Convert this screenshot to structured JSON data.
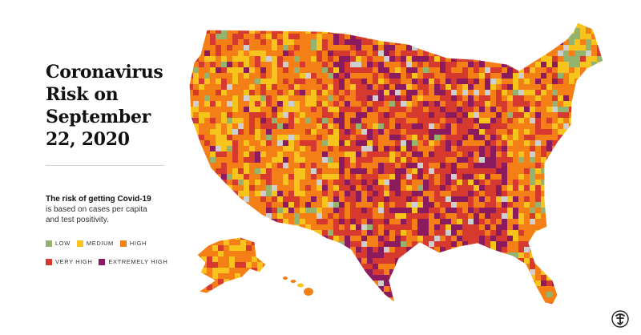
{
  "title_lines": [
    "Coronavirus",
    "Risk on",
    "September",
    "22, 2020"
  ],
  "description": {
    "lead": "The risk of getting Covid-19",
    "lines": [
      "is based on cases per capita",
      "and test positivity."
    ]
  },
  "legend": [
    {
      "label": "LOW",
      "color": "#94b36f"
    },
    {
      "label": "MEDIUM",
      "color": "#f7c31d"
    },
    {
      "label": "HIGH",
      "color": "#f57f17"
    },
    {
      "label": "VERY HIGH",
      "color": "#d63a2f"
    },
    {
      "label": "EXTREMELY HIGH",
      "color": "#8c1a5e"
    }
  ],
  "no_data_color": "#cfcfcf",
  "logo_icon": "nyt-t-logo-icon"
}
